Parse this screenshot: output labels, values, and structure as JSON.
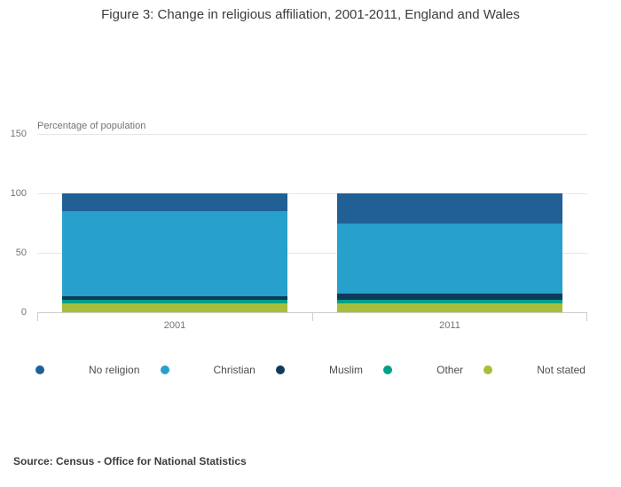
{
  "title": "Figure 3: Change in religious affiliation, 2001-2011, England and Wales",
  "source": "Source: Census - Office for National Statistics",
  "chart_data": {
    "type": "bar",
    "stacked": true,
    "title": "Figure 3: Change in religious affiliation, 2001-2011, England and Wales",
    "xlabel": "",
    "ylabel": "Percentage of population",
    "categories": [
      "2001",
      "2011"
    ],
    "series": [
      {
        "name": "Not stated",
        "color": "#a8bd3a",
        "values": [
          7.7,
          7.2
        ]
      },
      {
        "name": "Other",
        "color": "#00a188",
        "values": [
          2.8,
          3.6
        ]
      },
      {
        "name": "Muslim",
        "color": "#0e3a5a",
        "values": [
          3.0,
          4.8
        ]
      },
      {
        "name": "Christian",
        "color": "#27a0cc",
        "values": [
          71.7,
          59.3
        ]
      },
      {
        "name": "No religion",
        "color": "#206095",
        "values": [
          14.8,
          25.1
        ]
      }
    ],
    "legend_order": [
      "No religion",
      "Christian",
      "Muslim",
      "Other",
      "Not stated"
    ],
    "ylim": [
      0,
      150
    ],
    "yticks": [
      0,
      50,
      100,
      150
    ],
    "grid": true,
    "legend_position": "bottom"
  }
}
